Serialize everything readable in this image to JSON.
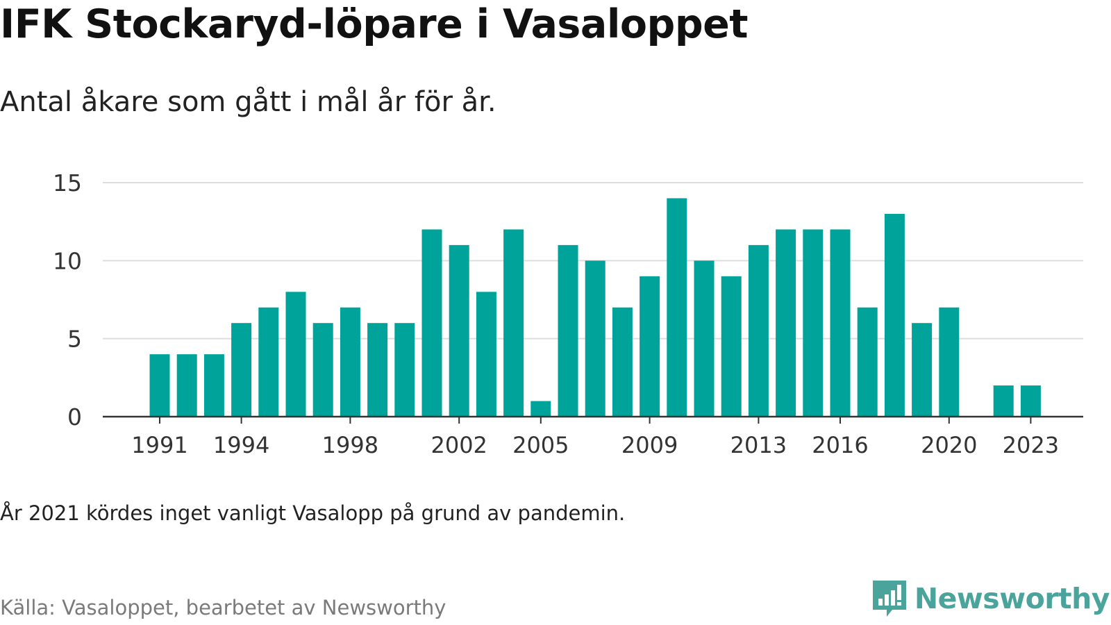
{
  "title": "IFK Stockaryd-löpare i Vasaloppet",
  "subtitle": "Antal åkare som gått i mål år för år.",
  "note": "År 2021 kördes inget vanligt Vasalopp på grund av pandemin.",
  "source": "Källa: Vasaloppet, bearbetet av Newsworthy",
  "brand": {
    "name": "Newsworthy",
    "icon": "newsworthy-logo-icon",
    "color": "#4aa49b"
  },
  "chart_data": {
    "type": "bar",
    "x": [
      1991,
      1992,
      1993,
      1994,
      1995,
      1996,
      1997,
      1998,
      1999,
      2000,
      2001,
      2002,
      2003,
      2004,
      2005,
      2006,
      2007,
      2008,
      2009,
      2010,
      2011,
      2012,
      2013,
      2014,
      2015,
      2016,
      2017,
      2018,
      2019,
      2020,
      2021,
      2022,
      2023
    ],
    "values": [
      4,
      4,
      4,
      6,
      7,
      8,
      6,
      7,
      6,
      6,
      12,
      11,
      8,
      12,
      1,
      11,
      10,
      7,
      9,
      14,
      10,
      9,
      11,
      12,
      12,
      12,
      7,
      13,
      6,
      7,
      null,
      2,
      2
    ],
    "x_tick_labels": [
      "1991",
      "1994",
      "1998",
      "2002",
      "2005",
      "2009",
      "2013",
      "2016",
      "2020",
      "2023"
    ],
    "y_ticks": [
      0,
      5,
      10,
      15
    ],
    "ylim": [
      0,
      15
    ],
    "grid": true,
    "xlabel": "",
    "ylabel": "",
    "bar_color": "#00a39a",
    "grid_color": "#dddddd",
    "axis_color": "#333333"
  }
}
